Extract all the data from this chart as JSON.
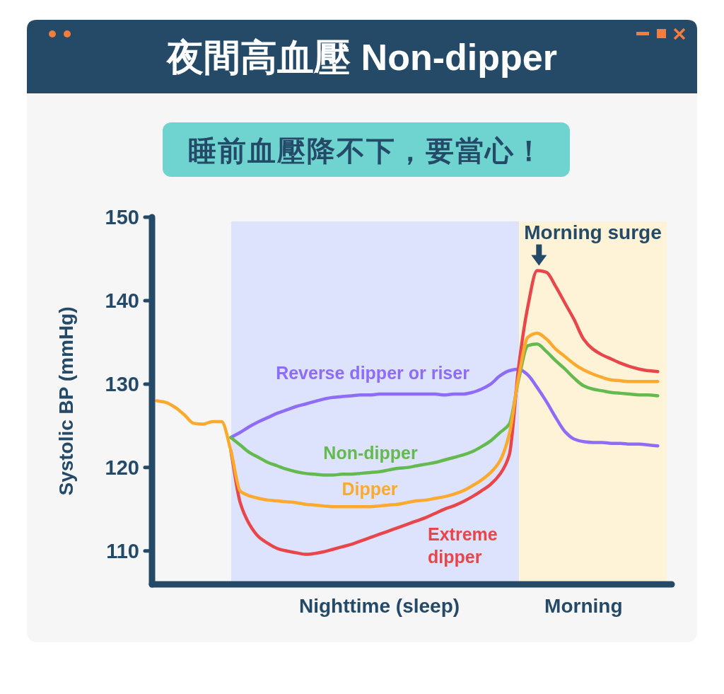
{
  "chart_data": {
    "type": "line",
    "title": "夜間高血壓 Non-dipper",
    "subtitle": "睡前血壓降不下，要當心！",
    "ylabel": "Systolic BP (mmHg)",
    "categories": [
      null,
      null,
      null,
      null,
      null,
      null,
      null,
      null,
      null,
      null,
      null,
      null,
      null,
      null,
      null,
      null,
      null,
      null,
      null,
      null,
      null,
      null,
      null,
      null,
      "Nighttime (sleep)",
      null,
      null,
      null,
      null,
      null,
      null,
      null,
      null,
      null,
      null,
      null,
      null,
      null,
      null,
      null,
      null,
      null,
      null,
      null,
      null,
      null,
      "Morning",
      null,
      null,
      null,
      null,
      null,
      null,
      null,
      null
    ],
    "ylim": [
      106,
      150
    ],
    "yticks": [
      110,
      120,
      130,
      140,
      150
    ],
    "line_style": "solid",
    "series": [
      {
        "name": "Reverse dipper or riser",
        "color": "#8e6cf7",
        "values": [
          null,
          null,
          null,
          null,
          null,
          null,
          null,
          null,
          123.6,
          124.2,
          124.9,
          125.5,
          126.0,
          126.5,
          126.9,
          127.3,
          127.6,
          127.9,
          128.2,
          128.4,
          128.5,
          128.6,
          128.7,
          128.7,
          128.8,
          128.8,
          128.8,
          128.8,
          128.8,
          128.8,
          128.8,
          128.7,
          128.8,
          128.8,
          129.0,
          129.4,
          130.0,
          131.0,
          131.6,
          131.8,
          131.1,
          129.6,
          127.9,
          126.0,
          124.3,
          123.4,
          123.1,
          123.0,
          123.0,
          122.9,
          122.9,
          122.8,
          122.8,
          122.7,
          122.6
        ]
      },
      {
        "name": "Non-dipper",
        "color": "#64b94f",
        "values": [
          null,
          null,
          null,
          null,
          null,
          null,
          null,
          null,
          123.6,
          122.7,
          121.8,
          121.2,
          120.6,
          120.2,
          119.8,
          119.5,
          119.3,
          119.2,
          119.1,
          119.1,
          119.2,
          119.2,
          119.3,
          119.4,
          119.5,
          119.7,
          119.9,
          120.0,
          120.2,
          120.4,
          120.6,
          120.9,
          121.2,
          121.5,
          121.9,
          122.5,
          123.2,
          124.2,
          125.2,
          130.5,
          134.6,
          134.8,
          133.9,
          132.8,
          131.8,
          130.7,
          129.8,
          129.4,
          129.2,
          129.0,
          128.9,
          128.8,
          128.7,
          128.7,
          128.6
        ]
      },
      {
        "name": "Extreme dipper",
        "color": "#e8464b",
        "values": [
          null,
          null,
          null,
          null,
          null,
          null,
          null,
          null,
          122.0,
          115.8,
          113.2,
          111.7,
          110.9,
          110.3,
          110.0,
          109.8,
          109.6,
          109.7,
          109.9,
          110.2,
          110.5,
          110.8,
          111.2,
          111.6,
          112.0,
          112.4,
          112.8,
          113.2,
          113.6,
          114.0,
          114.5,
          115.0,
          115.4,
          115.9,
          116.5,
          117.2,
          118.0,
          119.2,
          121.5,
          132.0,
          139.3,
          143.6,
          143.4,
          141.7,
          139.7,
          137.7,
          135.4,
          134.2,
          133.5,
          133.0,
          132.5,
          132.1,
          131.8,
          131.6,
          131.5
        ]
      },
      {
        "name": "Dipper",
        "color": "#fcaa2e",
        "values": [
          128.0,
          127.8,
          127.2,
          126.3,
          125.3,
          125.2,
          125.5,
          125.5,
          122.0,
          117.2,
          116.6,
          116.3,
          116.1,
          116.0,
          115.9,
          115.8,
          115.6,
          115.5,
          115.4,
          115.3,
          115.3,
          115.3,
          115.3,
          115.3,
          115.4,
          115.5,
          115.6,
          115.8,
          116.0,
          116.1,
          116.3,
          116.5,
          116.8,
          117.2,
          117.8,
          118.5,
          119.4,
          120.8,
          124.0,
          130.8,
          135.6,
          136.1,
          135.4,
          134.2,
          133.3,
          132.4,
          131.7,
          131.2,
          130.8,
          130.5,
          130.4,
          130.3,
          130.3,
          130.3,
          130.3
        ]
      }
    ],
    "annotations": [
      "Morning surge"
    ]
  }
}
